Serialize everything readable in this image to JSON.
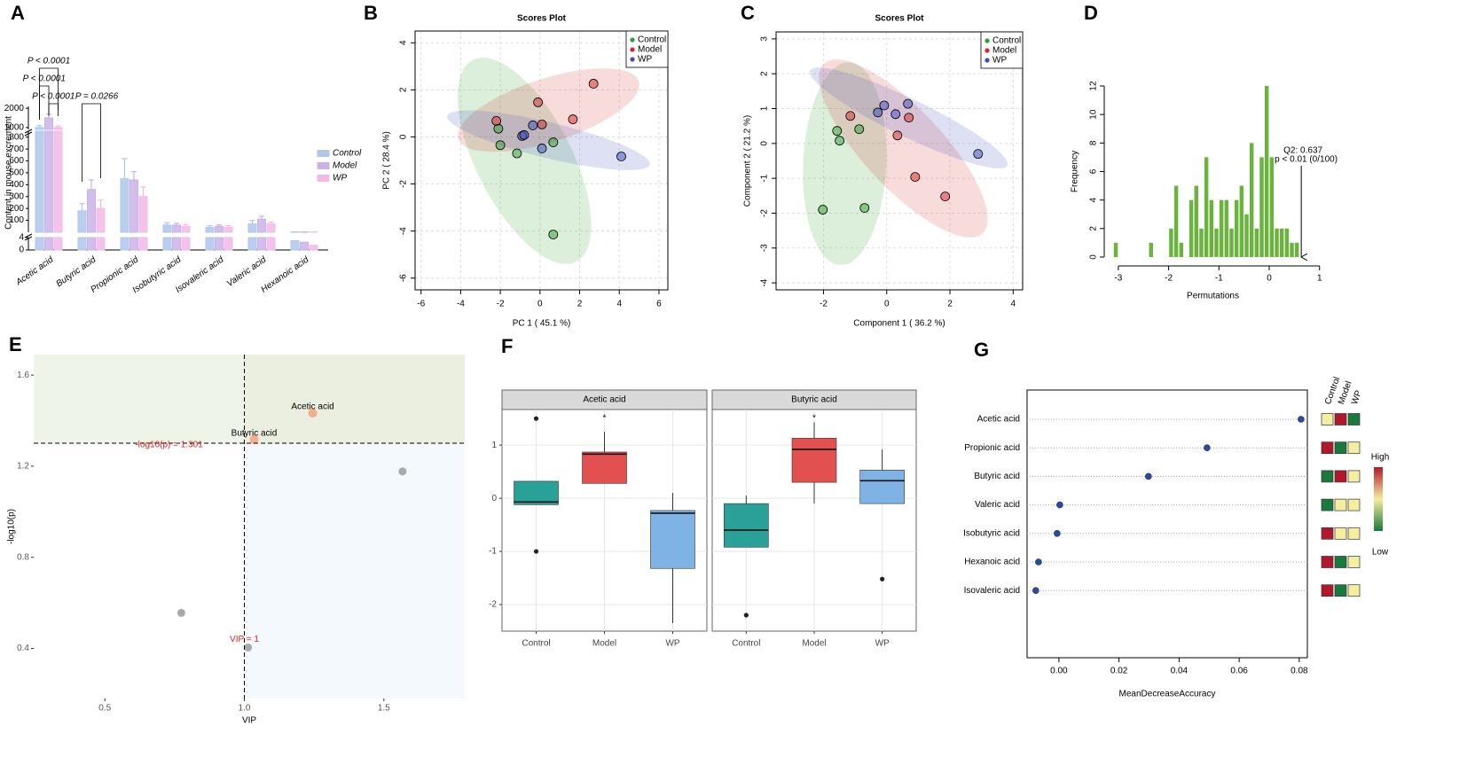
{
  "chart_data": [
    {
      "type": "bar",
      "panel": "A",
      "ylabel": "Content in mouse excrement",
      "categories": [
        "Acetic acid",
        "Butyric acid",
        "Propionic acid",
        "Isobutyric acid",
        "Isovaleric acid",
        "Valeric acid",
        "Hexanoic acid"
      ],
      "series": [
        {
          "name": "Control",
          "color": "#aec7ea",
          "values": [
            1000,
            180,
            450,
            60,
            40,
            70,
            3
          ],
          "errors": [
            100,
            60,
            170,
            20,
            15,
            30,
            0.3
          ]
        },
        {
          "name": "Model",
          "color": "#c9b3e6",
          "values": [
            1500,
            360,
            440,
            60,
            50,
            110,
            2.5
          ],
          "errors": [
            200,
            80,
            70,
            15,
            12,
            25,
            0.3
          ]
        },
        {
          "name": "WP",
          "color": "#f2b8e6",
          "values": [
            1000,
            200,
            300,
            50,
            40,
            70,
            1.5
          ],
          "errors": [
            80,
            70,
            80,
            15,
            15,
            15,
            0.2
          ]
        }
      ],
      "y_segments": [
        {
          "ylim": [
            0,
            4
          ],
          "yticks": [
            0,
            4
          ]
        },
        {
          "ylim": [
            0,
            850
          ],
          "yticks": [
            100,
            200,
            300,
            400,
            500,
            600,
            700,
            800
          ]
        },
        {
          "ylim": [
            900,
            2100
          ],
          "yticks": [
            1000,
            2000
          ]
        }
      ],
      "annotations": [
        "P < 0.0001",
        "P < 0.0001",
        "P < 0.0001",
        "P = 0.0266"
      ]
    },
    {
      "type": "scatter",
      "panel": "B",
      "title": "Scores Plot",
      "xlabel": "PC 1 ( 45.1 %)",
      "ylabel": "PC 2 ( 28.4 %)",
      "xlim": [
        -6.3,
        6.45
      ],
      "ylim": [
        -6.5,
        4.5
      ],
      "xticks": [
        -6,
        -4,
        -2,
        0,
        2,
        4,
        6
      ],
      "yticks": [
        -6,
        -4,
        -2,
        0,
        2,
        4
      ],
      "grid": true,
      "ellipses": true,
      "legend": "top-right",
      "series": [
        {
          "name": "Control",
          "color": "#2ca02c",
          "x": [
            -2.1,
            -2.0,
            -1.16,
            0.67,
            0.67
          ],
          "values": [
            0.35,
            -0.35,
            -0.7,
            -0.23,
            -4.15
          ]
        },
        {
          "name": "Model",
          "color": "#d62728",
          "x": [
            -2.2,
            -0.1,
            0.1,
            1.66,
            2.7
          ],
          "values": [
            0.68,
            1.47,
            0.53,
            0.75,
            2.26
          ]
        },
        {
          "name": "WP",
          "color": "#3b4cc0",
          "x": [
            -0.9,
            -0.36,
            0.1,
            4.1,
            -0.8
          ],
          "values": [
            0.04,
            0.49,
            -0.49,
            -0.83,
            0.08
          ]
        }
      ]
    },
    {
      "type": "scatter",
      "panel": "C",
      "title": "Scores Plot",
      "xlabel": "Component 1 ( 36.2 %)",
      "ylabel": "Component 2 ( 21.2 %)",
      "xlim": [
        -3.5,
        4.3
      ],
      "ylim": [
        -4.2,
        3.2
      ],
      "xticks": [
        -2,
        0,
        2,
        4
      ],
      "yticks": [
        -4,
        -3,
        -2,
        -1,
        0,
        1,
        2,
        3
      ],
      "grid": true,
      "ellipses": true,
      "legend": "top-right",
      "series": [
        {
          "name": "Control",
          "color": "#2ca02c",
          "x": [
            -1.57,
            -1.49,
            -0.87,
            -2.02,
            -0.7
          ],
          "values": [
            0.36,
            0.08,
            0.41,
            -1.9,
            -1.85
          ]
        },
        {
          "name": "Model",
          "color": "#d62728",
          "x": [
            -1.15,
            0.34,
            0.7,
            0.9,
            1.85
          ],
          "values": [
            0.79,
            0.23,
            0.74,
            -0.96,
            -1.52
          ]
        },
        {
          "name": "WP",
          "color": "#3b4cc0",
          "x": [
            -0.28,
            -0.08,
            0.28,
            0.67,
            2.89
          ],
          "values": [
            0.89,
            1.09,
            0.84,
            1.14,
            -0.3
          ]
        }
      ]
    },
    {
      "type": "histogram",
      "panel": "D",
      "xlabel": "Permutations",
      "ylabel": "Frequency",
      "color": "#6ab43e",
      "bins": [
        -3.1,
        -3,
        -2.9,
        -2.8,
        -2.7,
        -2.6,
        -2.5,
        -2.4,
        -2.3,
        -2.2,
        -2.1,
        -2,
        -1.9,
        -1.8,
        -1.7,
        -1.6,
        -1.5,
        -1.4,
        -1.3,
        -1.2,
        -1.1,
        -1,
        -0.9,
        -0.8,
        -0.7,
        -0.6,
        -0.5,
        -0.4,
        -0.3,
        -0.2,
        -0.1,
        0,
        0.1,
        0.2,
        0.3,
        0.4,
        0.5,
        0.6
      ],
      "values": [
        1,
        0,
        0,
        0,
        0,
        0,
        0,
        1,
        0,
        0,
        0,
        2,
        5,
        1,
        0,
        4,
        5,
        2,
        7,
        4,
        2,
        4,
        4,
        2,
        4,
        5,
        3,
        8,
        2,
        7,
        12,
        7,
        2,
        2,
        2,
        1,
        1
      ],
      "xlim": [
        -3.28,
        1.04
      ],
      "ylim": [
        0,
        12
      ],
      "xticks": [
        -3,
        -2,
        -1,
        0,
        1
      ],
      "yticks": [
        0,
        2,
        4,
        6,
        8,
        10,
        12
      ],
      "annotation": {
        "x": 0.637,
        "label": "Q2: 0.637",
        "sublabel": "p < 0.01 (0/100)"
      }
    },
    {
      "type": "scatter",
      "panel": "E",
      "xlabel": "VIP",
      "ylabel": "-log10(p)",
      "x": [
        1.245,
        1.035,
        1.567,
        0.774,
        1.013
      ],
      "values": [
        1.433,
        1.317,
        1.177,
        0.556,
        0.404
      ],
      "point_labels": [
        "Acetic acid",
        "Butyric acid",
        null,
        null,
        null
      ],
      "colors": [
        "#f4a582",
        "#f4a582",
        "#a0a0a0",
        "#a0a0a0",
        "#a0a0a0"
      ],
      "xlim": [
        0.245,
        1.79
      ],
      "ylim": [
        0.18,
        1.69
      ],
      "xticks": [
        0.5,
        {
          "value": 1,
          "label": "1.0"
        },
        1.5
      ],
      "yticks": [
        0.4,
        0.8,
        1.2,
        1.6
      ],
      "hline": {
        "value": 1.301,
        "label": "-log10(p) = 1.301"
      },
      "vline": {
        "value": 1,
        "label": "VIP = 1"
      }
    },
    {
      "type": "box",
      "panel": "F",
      "categories": [
        "Control",
        "Model",
        "WP"
      ],
      "colors": [
        "#2aa198",
        "#e35050",
        "#7fb2e5"
      ],
      "ylim": [
        -2.5,
        1.67
      ],
      "yticks": [
        -2,
        -1,
        0,
        1
      ],
      "facets": [
        {
          "title": "Acetic acid",
          "markers": [
            null,
            "*",
            null
          ],
          "boxes": [
            {
              "q1": -0.12,
              "median": -0.07,
              "q3": 0.32,
              "whisker_low": -0.12,
              "whisker_high": 0.32,
              "outliers": [
                1.5,
                -1.0
              ]
            },
            {
              "q1": 0.28,
              "median": 0.83,
              "q3": 0.87,
              "whisker_low": 0.28,
              "whisker_high": 1.25,
              "outliers": []
            },
            {
              "q1": -1.32,
              "median": -0.28,
              "q3": -0.23,
              "whisker_low": -2.35,
              "whisker_high": 0.1,
              "outliers": []
            }
          ]
        },
        {
          "title": "Butyric acid",
          "markers": [
            null,
            "*",
            null
          ],
          "boxes": [
            {
              "q1": -0.92,
              "median": -0.6,
              "q3": -0.1,
              "whisker_low": -0.92,
              "whisker_high": 0.05,
              "outliers": [
                -2.2
              ]
            },
            {
              "q1": 0.3,
              "median": 0.92,
              "q3": 1.13,
              "whisker_low": -0.1,
              "whisker_high": 1.43,
              "outliers": []
            },
            {
              "q1": -0.1,
              "median": 0.33,
              "q3": 0.53,
              "whisker_low": -0.1,
              "whisker_high": 0.92,
              "outliers": [
                -1.52
              ]
            }
          ]
        }
      ]
    },
    {
      "type": "dot",
      "panel": "G",
      "xlabel": "MeanDecreaseAccuracy",
      "color": "#2b4c9b",
      "categories": [
        "Acetic acid",
        "Propionic acid",
        "Butyric acid",
        "Valeric acid",
        "Isobutyric acid",
        "Hexanoic acid",
        "Isovaleric acid"
      ],
      "values": [
        0.0806,
        0.0493,
        0.0298,
        0.0003,
        -0.0006,
        -0.0068,
        -0.0077
      ],
      "xlim": [
        -0.0106,
        0.0827
      ],
      "xticks": [
        {
          "value": 0,
          "label": "0.00"
        },
        {
          "value": 0.02,
          "label": "0.02"
        },
        {
          "value": 0.04,
          "label": "0.04"
        },
        {
          "value": 0.06,
          "label": "0.06"
        },
        {
          "value": 0.08,
          "label": "0.08"
        }
      ],
      "heatmap": {
        "columns": [
          "Control",
          "Model",
          "WP"
        ],
        "legend": [
          "High",
          "Low"
        ],
        "colors": [
          [
            "#f5eda0",
            "#b2182b",
            "#1a7a3a"
          ],
          [
            "#b2182b",
            "#1a7a3a",
            "#f5eda0"
          ],
          [
            "#1a7a3a",
            "#b2182b",
            "#f5eda0"
          ],
          [
            "#1a7a3a",
            "#f5eda0",
            "#f5eda0"
          ],
          [
            "#b2182b",
            "#f5eda0",
            "#f5eda0"
          ],
          [
            "#b2182b",
            "#1a7a3a",
            "#f5eda0"
          ],
          [
            "#b2182b",
            "#1a7a3a",
            "#f5eda0"
          ]
        ]
      }
    }
  ]
}
